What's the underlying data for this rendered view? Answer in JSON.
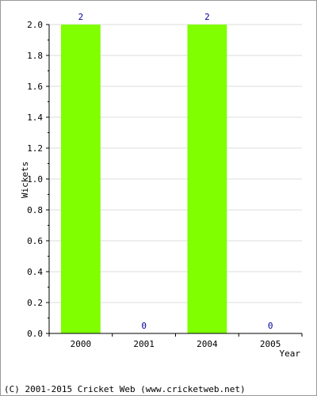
{
  "chart_data": {
    "type": "bar",
    "categories": [
      "2000",
      "2001",
      "2004",
      "2005"
    ],
    "values": [
      2,
      0,
      2,
      0
    ],
    "data_labels": [
      "2",
      "0",
      "2",
      "0"
    ],
    "title": "",
    "xlabel": "Year",
    "ylabel": "Wickets",
    "ylim": [
      0,
      2.0
    ],
    "yticks": [
      "0.0",
      "0.2",
      "0.4",
      "0.6",
      "0.8",
      "1.0",
      "1.2",
      "1.4",
      "1.6",
      "1.8",
      "2.0"
    ],
    "grid": true,
    "legend": "none",
    "bar_color": "#7fff00",
    "data_label_color": "#000099",
    "grid_color": "#dddddd"
  },
  "footer": {
    "text": "(C) 2001-2015 Cricket Web (www.cricketweb.net)"
  }
}
